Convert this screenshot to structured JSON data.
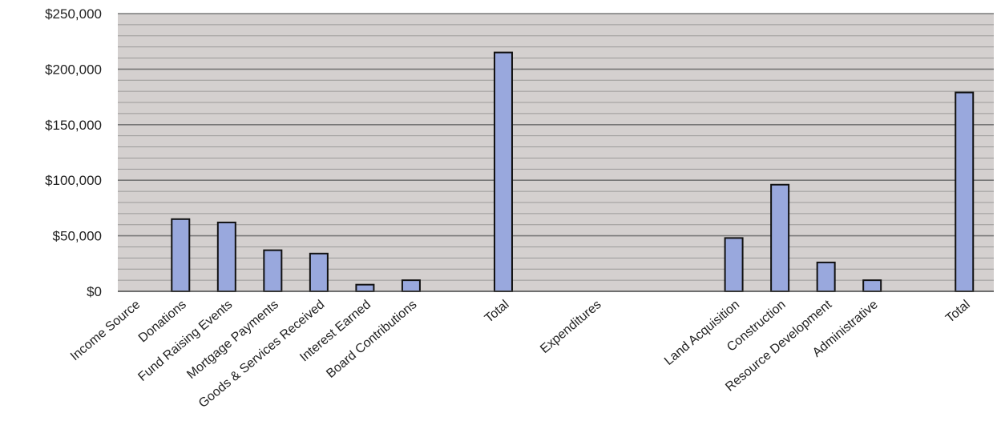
{
  "chart_data": {
    "type": "bar",
    "categories": [
      "Income Source",
      "Donations",
      "Fund Raising Events",
      "Mortgage Payments",
      "Goods & Services Received",
      "Interest Earned",
      "Board Contributions",
      "",
      "Total",
      "",
      "Expenditures",
      "",
      "",
      "Land Acquisition",
      "Construction",
      "Resource Development",
      "Administrative",
      "",
      "Total"
    ],
    "values": [
      0,
      65000,
      62000,
      37000,
      34000,
      6000,
      10000,
      0,
      215000,
      0,
      0,
      0,
      0,
      48000,
      96000,
      26000,
      10000,
      0,
      179000
    ],
    "yticks": [
      "$0",
      "$50,000",
      "$100,000",
      "$150,000",
      "$200,000",
      "$250,000"
    ],
    "ylim": [
      0,
      250000
    ],
    "title": "",
    "xlabel": "",
    "ylabel": "",
    "grid": true,
    "colors": {
      "bar_fill": "#99a8dd",
      "bar_stroke": "#111111",
      "plot_background": "#d4d0cf",
      "gridline": "#6e6e6e"
    }
  }
}
